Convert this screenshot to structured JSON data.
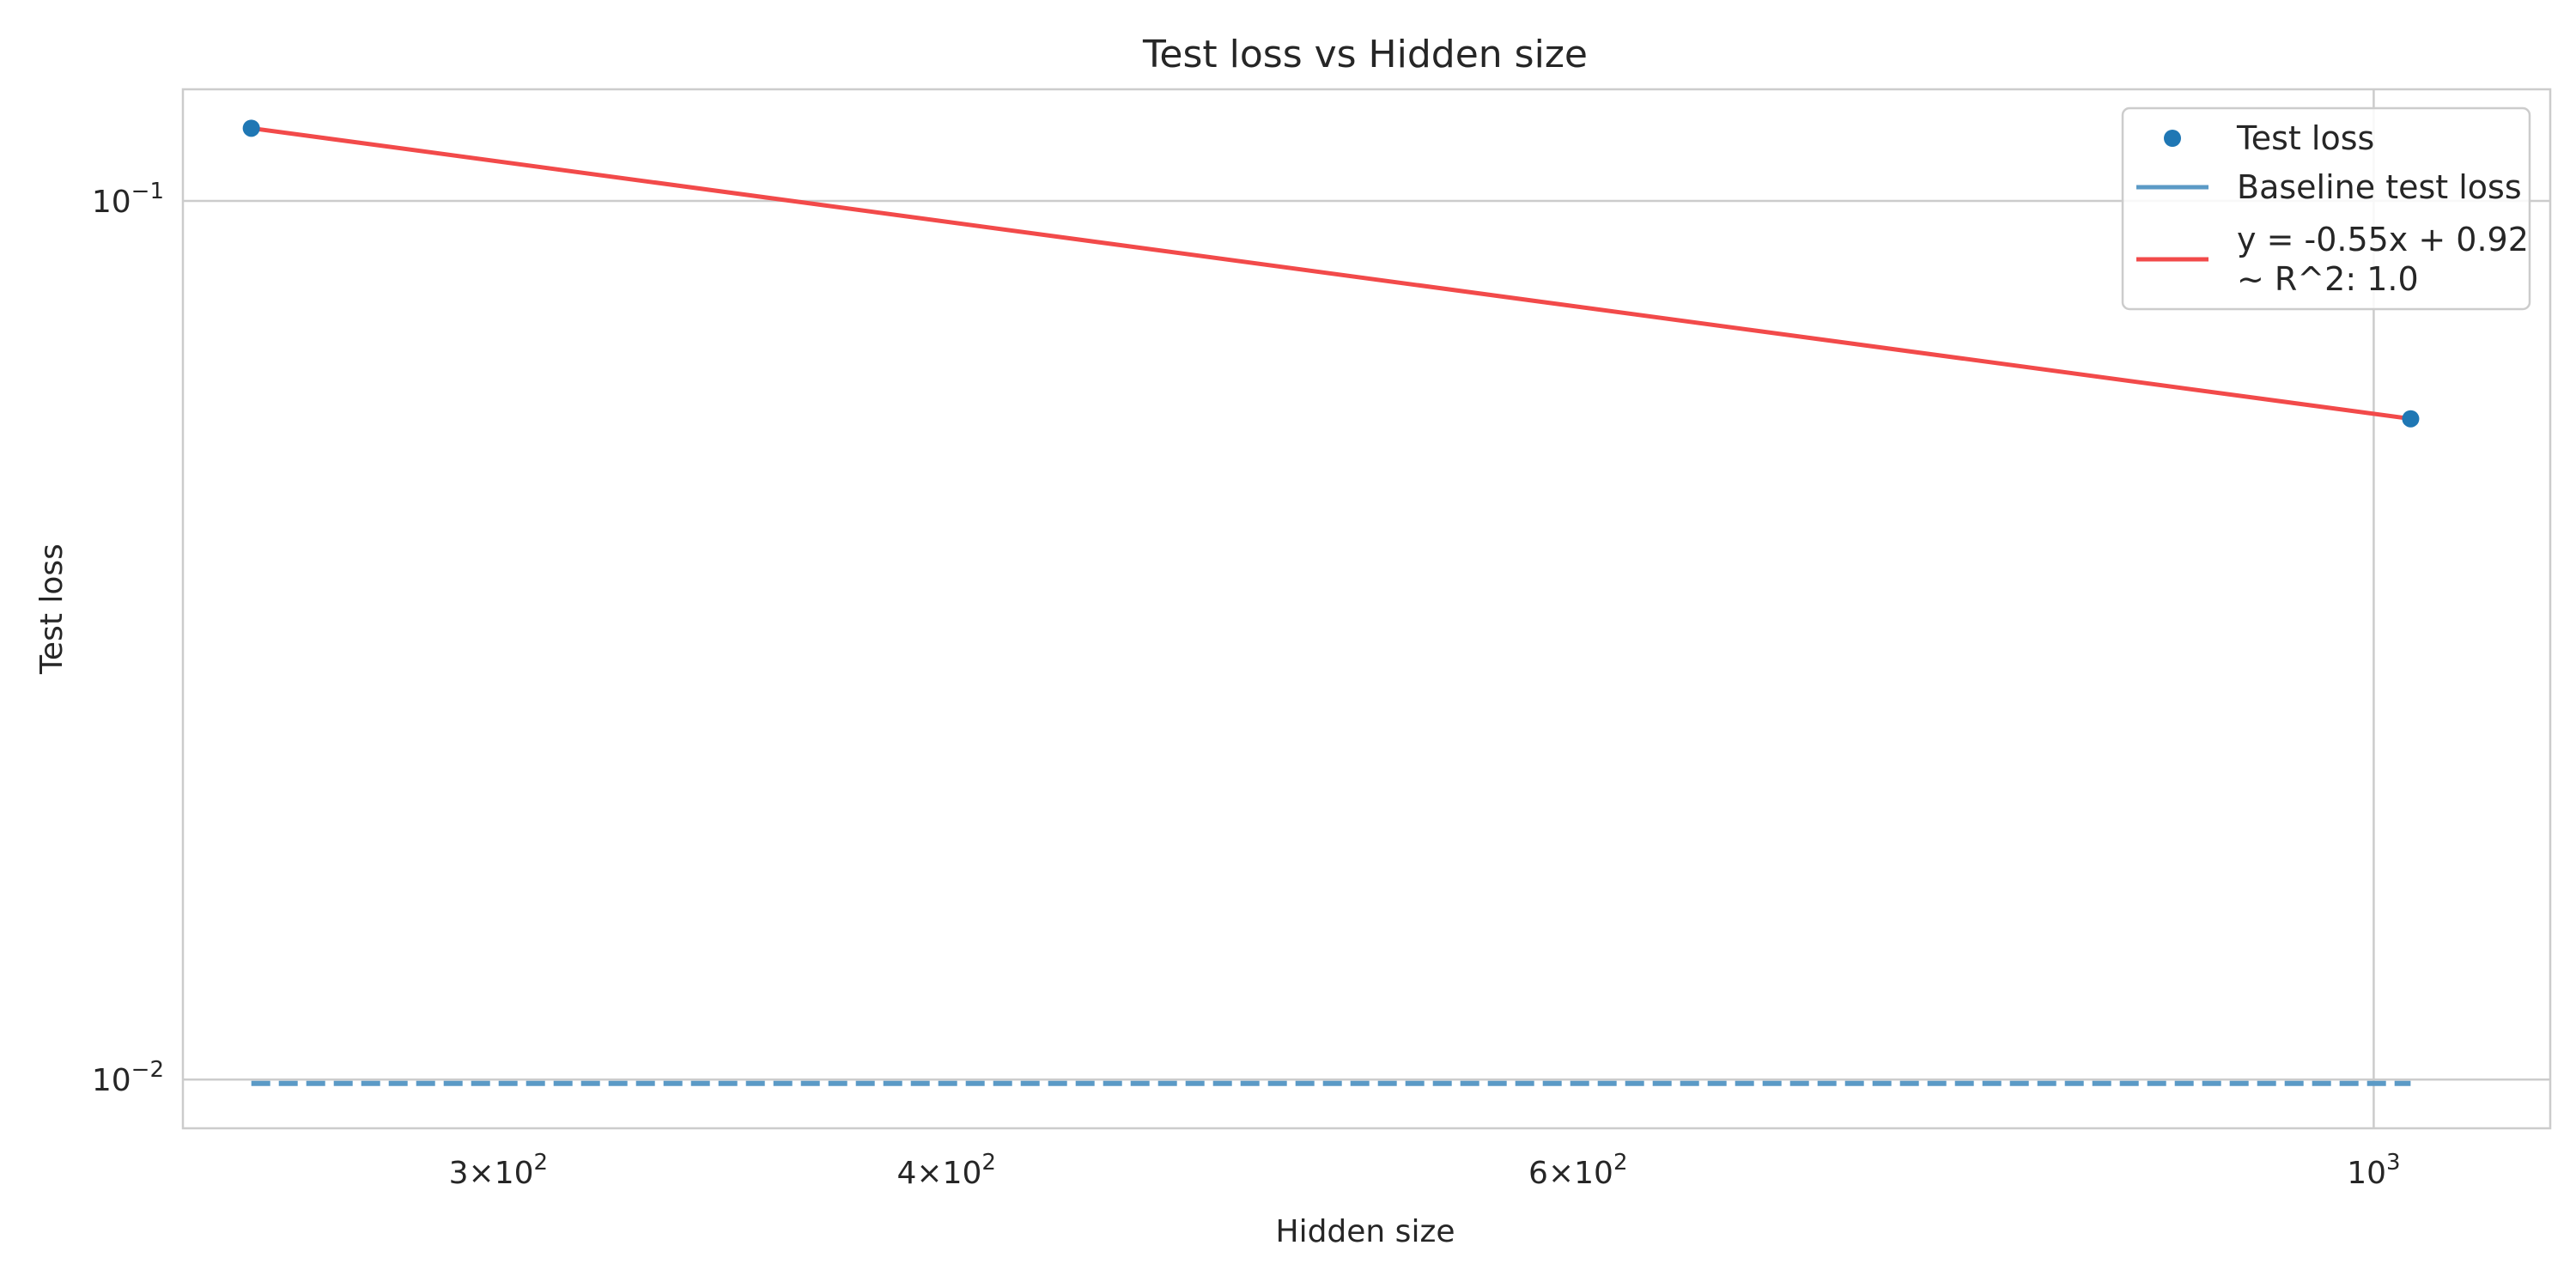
{
  "chart_data": {
    "type": "scatter",
    "title": "Test loss vs Hidden size",
    "xlabel": "Hidden size",
    "ylabel": "Test loss",
    "xscale": "log",
    "yscale": "log",
    "xlim": [
      245,
      1120
    ],
    "ylim": [
      0.0088,
      0.134
    ],
    "grid": true,
    "legend_position": "upper right",
    "x_ticks": [
      {
        "value": 300,
        "base": "3×10",
        "exp": "2"
      },
      {
        "value": 400,
        "base": "4×10",
        "exp": "2"
      },
      {
        "value": 600,
        "base": "6×10",
        "exp": "2"
      },
      {
        "value": 1000,
        "base": "10",
        "exp": "3"
      }
    ],
    "y_ticks": [
      {
        "value": 0.1,
        "base": "10",
        "exp": "−1"
      },
      {
        "value": 0.01,
        "base": "10",
        "exp": "−2"
      }
    ],
    "series": [
      {
        "name": "Test loss",
        "kind": "scatter",
        "color": "#1f77b4",
        "points": [
          {
            "x": 256,
            "y": 0.121
          },
          {
            "x": 1024,
            "y": 0.0565
          }
        ]
      },
      {
        "name": "Baseline test loss",
        "kind": "line",
        "style": "dashed",
        "color": "#5b9ac6",
        "points": [
          {
            "x": 256,
            "y": 0.0099
          },
          {
            "x": 1024,
            "y": 0.0099
          }
        ]
      },
      {
        "name": "y = -0.55x + 0.92\n~ R^2: 1.0",
        "kind": "line",
        "style": "solid",
        "color": "#f24a4a",
        "points": [
          {
            "x": 256,
            "y": 0.121
          },
          {
            "x": 1024,
            "y": 0.0565
          }
        ]
      }
    ]
  }
}
